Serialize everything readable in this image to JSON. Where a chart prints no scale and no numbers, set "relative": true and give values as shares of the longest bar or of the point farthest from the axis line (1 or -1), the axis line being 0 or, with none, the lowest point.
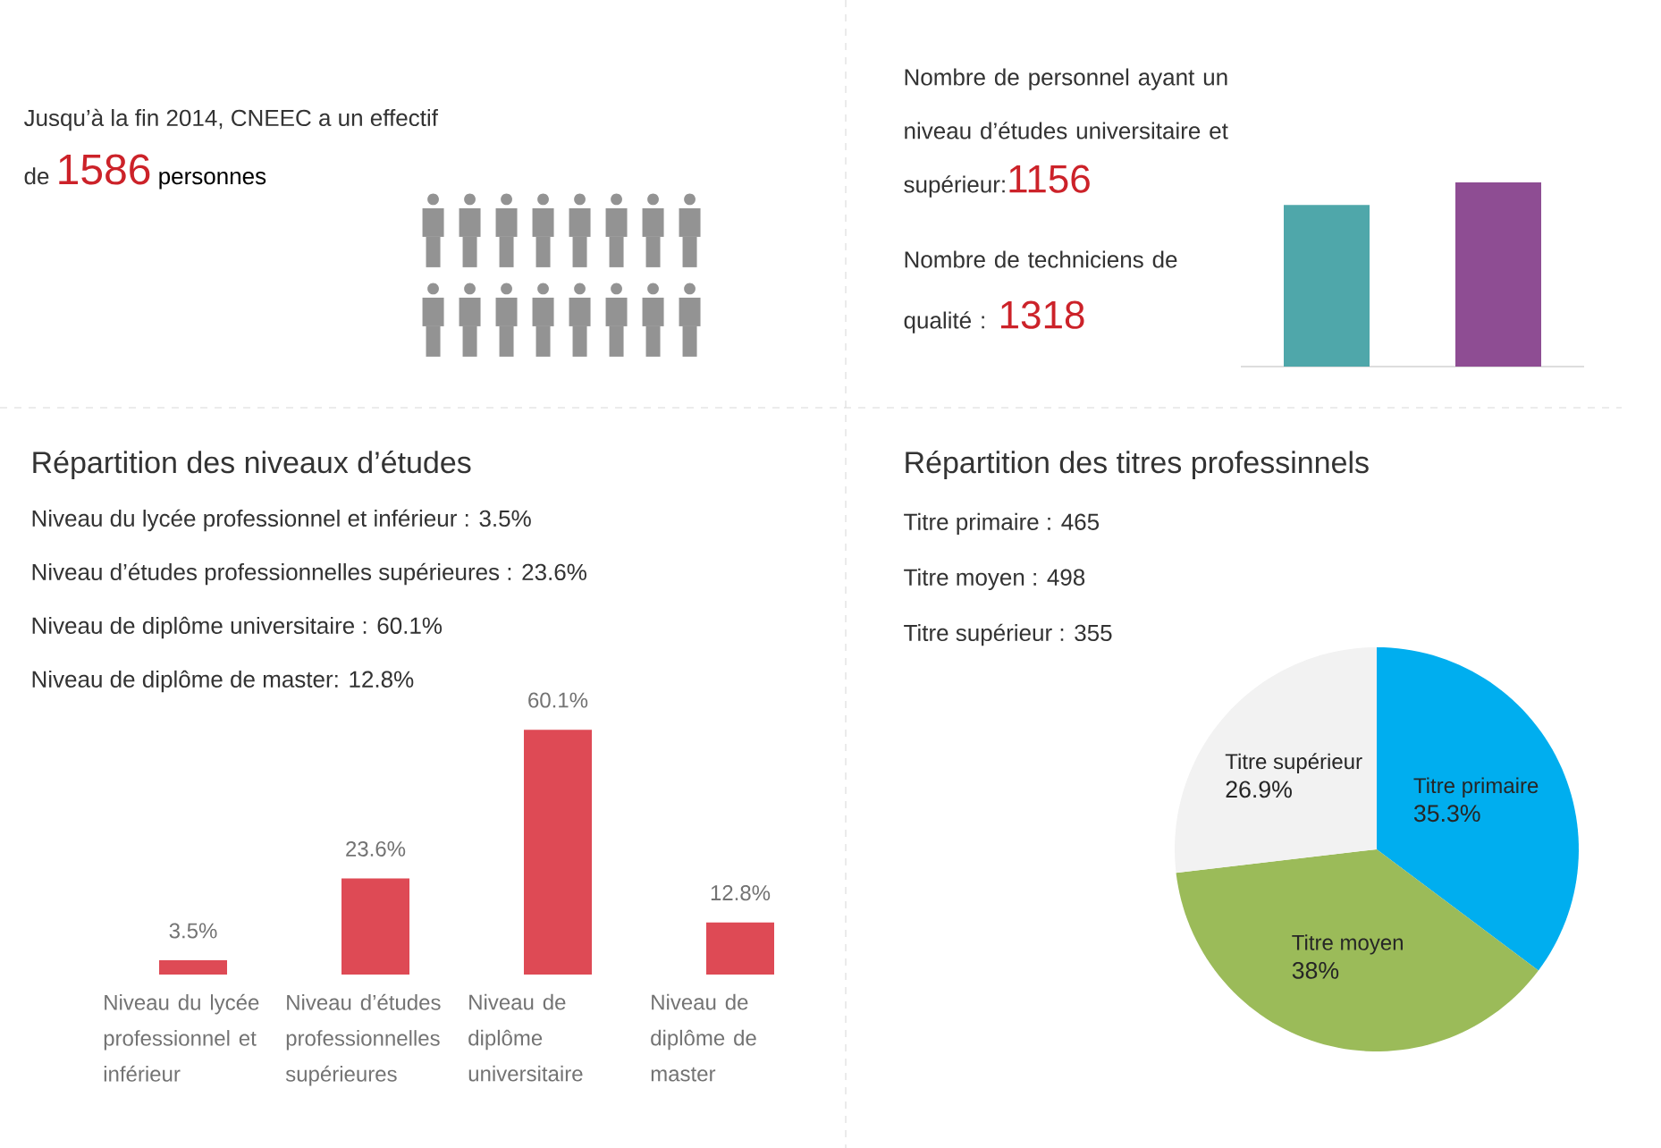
{
  "chart_data": [
    {
      "type": "other",
      "annotations": [
        "Jusqu’à la fin 2014, CNEEC a un effectif",
        "de",
        "1586",
        "personnes"
      ]
    },
    {
      "type": "bar",
      "relative": true,
      "categories": [
        null,
        null
      ],
      "values": [
        0.877,
        1
      ],
      "colors": [
        "#4fa7aa",
        "#8e4d93"
      ],
      "annotations": [
        "Nombre de personnel ayant un niveau d’études universitaire et supérieur:",
        "1156",
        "Nombre de techniciens de qualité :",
        "1318"
      ]
    },
    {
      "type": "bar",
      "title": "Répartition des niveaux d’études",
      "annotations": [
        "Niveau du lycée professionnel et inférieur :  3.5%",
        "Niveau d’études professionnelles supérieures : 23.6%",
        "Niveau de diplôme universitaire : 60.1%",
        "Niveau de diplôme de master: 12.8%"
      ],
      "categories": [
        "Niveau du lycée professionnel et inférieur",
        "Niveau d’études professionnelles supérieures",
        "Niveau de diplôme universitaire",
        "Niveau de diplôme de master"
      ],
      "values": [
        3.5,
        23.6,
        60.1,
        12.8
      ],
      "value_labels": [
        "3.5%",
        "23.6%",
        "60.1%",
        "12.8%"
      ],
      "color": "#de4a55"
    },
    {
      "type": "pie",
      "title": "Répartition des titres professinnels",
      "annotations": [
        "Titre primaire : 465",
        "Titre moyen : 498",
        "Titre supérieur : 355"
      ],
      "categories": [
        "Titre primaire",
        "Titre moyen",
        "Titre supérieur"
      ],
      "values": [
        35.3,
        38,
        26.9
      ],
      "value_labels": [
        "35.3%",
        "38%",
        "26.9%"
      ],
      "colors": [
        "#00aeef",
        "#9bbb59",
        "#f2f2f2"
      ]
    }
  ]
}
